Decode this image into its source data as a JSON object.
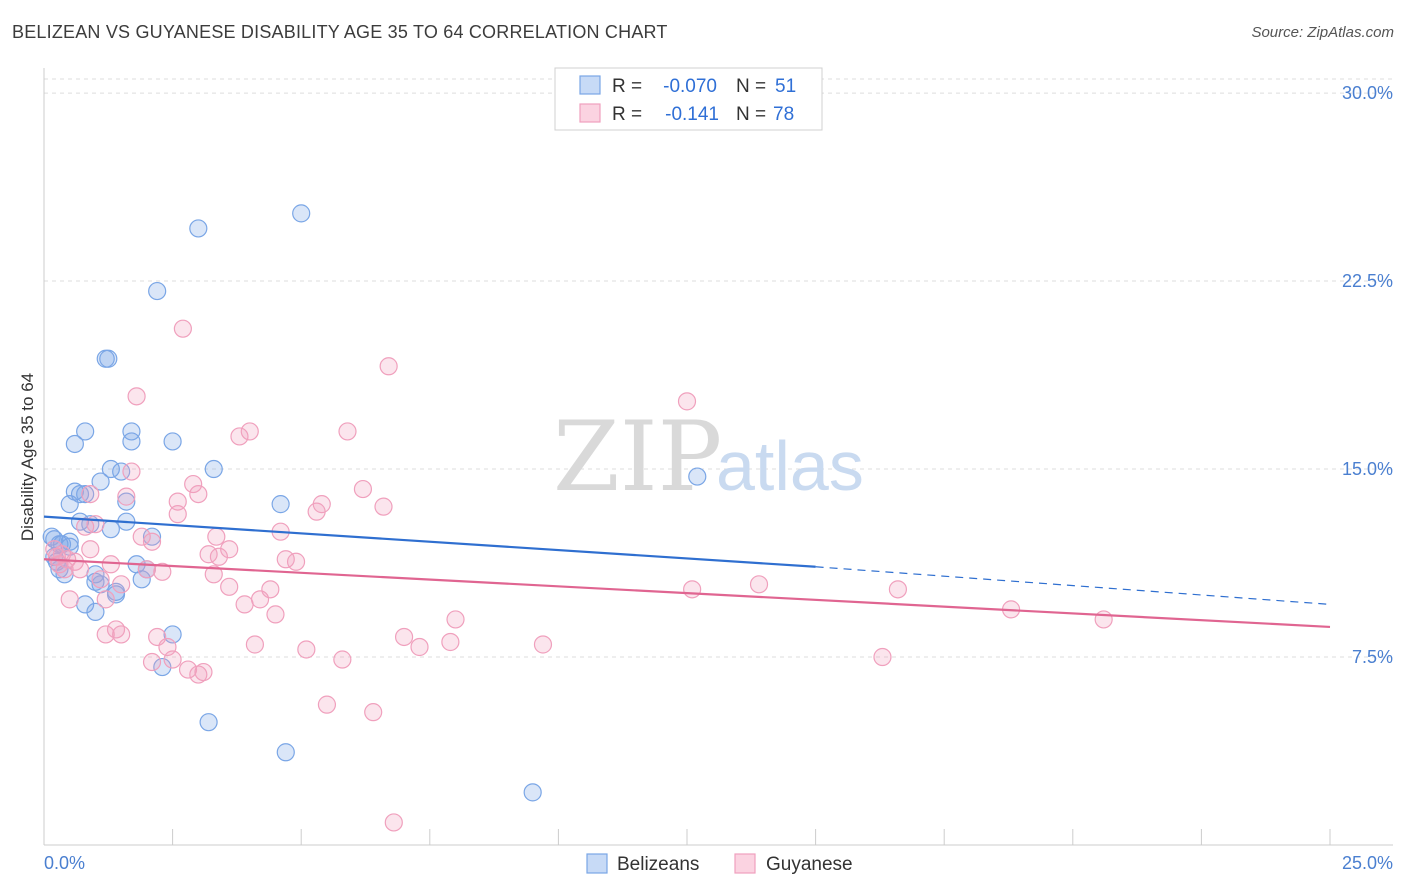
{
  "title": "BELIZEAN VS GUYANESE DISABILITY AGE 35 TO 64 CORRELATION CHART",
  "source": "Source: ZipAtlas.com",
  "watermark": {
    "zip": "ZIP",
    "atlas": "atlas"
  },
  "legend": {
    "r_label": "R =",
    "n_label": "N =",
    "rows": [
      {
        "series": "Belizeans",
        "r": "-0.070",
        "n": "51",
        "color": "#7aa6e6"
      },
      {
        "series": "Guyanese",
        "r": "-0.141",
        "n": "78",
        "color": "#f0a0bd"
      }
    ]
  },
  "chart_data": {
    "type": "scatter",
    "title": "BELIZEAN VS GUYANESE DISABILITY AGE 35 TO 64 CORRELATION CHART",
    "xlabel": "",
    "ylabel": "Disability Age 35 to 64",
    "xlim": [
      0,
      25
    ],
    "ylim": [
      0,
      31
    ],
    "x_tick_labels": [
      "0.0%",
      "25.0%"
    ],
    "y_ticks": [
      7.5,
      15.0,
      22.5,
      30.0
    ],
    "y_tick_labels": [
      "7.5%",
      "15.0%",
      "22.5%",
      "30.0%"
    ],
    "grid": true,
    "series": [
      {
        "name": "Belizeans",
        "color": "#7aa6e6",
        "line_color": "#2f6fd0",
        "trend": {
          "x_start": 0.0,
          "y_start": 13.1,
          "x_solid_end": 15.0,
          "y_solid_end": 11.1,
          "x_dash_end": 25.0,
          "y_dash_end": 9.6
        },
        "points": [
          [
            0.2,
            12.2
          ],
          [
            0.2,
            11.5
          ],
          [
            0.3,
            11.0
          ],
          [
            0.3,
            12.0
          ],
          [
            0.4,
            10.8
          ],
          [
            0.5,
            11.9
          ],
          [
            0.5,
            12.1
          ],
          [
            0.5,
            13.6
          ],
          [
            0.6,
            16.0
          ],
          [
            0.6,
            14.1
          ],
          [
            0.7,
            14.0
          ],
          [
            0.7,
            12.9
          ],
          [
            0.8,
            14.0
          ],
          [
            0.8,
            16.5
          ],
          [
            0.8,
            9.6
          ],
          [
            0.9,
            12.8
          ],
          [
            1.0,
            10.8
          ],
          [
            1.0,
            10.5
          ],
          [
            1.0,
            9.3
          ],
          [
            1.1,
            10.4
          ],
          [
            1.1,
            14.5
          ],
          [
            1.2,
            19.4
          ],
          [
            1.25,
            19.4
          ],
          [
            1.3,
            15.0
          ],
          [
            1.3,
            12.6
          ],
          [
            1.4,
            10.1
          ],
          [
            1.4,
            10.0
          ],
          [
            1.5,
            14.9
          ],
          [
            1.6,
            13.7
          ],
          [
            1.6,
            12.9
          ],
          [
            1.7,
            16.1
          ],
          [
            1.7,
            16.5
          ],
          [
            1.8,
            11.2
          ],
          [
            1.9,
            10.6
          ],
          [
            2.0,
            11.0
          ],
          [
            2.1,
            12.3
          ],
          [
            2.2,
            22.1
          ],
          [
            2.3,
            7.1
          ],
          [
            2.5,
            8.4
          ],
          [
            2.5,
            16.1
          ],
          [
            3.0,
            24.6
          ],
          [
            3.2,
            4.9
          ],
          [
            3.3,
            15.0
          ],
          [
            4.6,
            13.6
          ],
          [
            4.7,
            3.7
          ],
          [
            5.0,
            25.2
          ],
          [
            9.5,
            2.1
          ],
          [
            12.7,
            14.7
          ],
          [
            0.15,
            12.3
          ],
          [
            0.25,
            11.3
          ],
          [
            0.35,
            12.0
          ]
        ]
      },
      {
        "name": "Guyanese",
        "color": "#f0a0bd",
        "line_color": "#e06591",
        "trend": {
          "x_start": 0.0,
          "y_start": 11.4,
          "x_solid_end": 25.0,
          "y_solid_end": 8.7
        },
        "points": [
          [
            0.2,
            11.8
          ],
          [
            0.3,
            11.2
          ],
          [
            0.35,
            11.6
          ],
          [
            0.4,
            11.0
          ],
          [
            0.45,
            11.4
          ],
          [
            0.5,
            9.8
          ],
          [
            0.6,
            11.3
          ],
          [
            0.7,
            11.0
          ],
          [
            0.8,
            12.7
          ],
          [
            0.9,
            14.0
          ],
          [
            0.9,
            11.8
          ],
          [
            1.0,
            12.8
          ],
          [
            1.1,
            10.6
          ],
          [
            1.2,
            9.8
          ],
          [
            1.2,
            8.4
          ],
          [
            1.3,
            11.2
          ],
          [
            1.4,
            8.6
          ],
          [
            1.5,
            8.4
          ],
          [
            1.5,
            10.4
          ],
          [
            1.6,
            13.9
          ],
          [
            1.7,
            14.9
          ],
          [
            1.8,
            17.9
          ],
          [
            1.9,
            12.3
          ],
          [
            2.0,
            11.0
          ],
          [
            2.1,
            12.1
          ],
          [
            2.1,
            7.3
          ],
          [
            2.2,
            8.3
          ],
          [
            2.3,
            10.9
          ],
          [
            2.4,
            7.9
          ],
          [
            2.5,
            7.4
          ],
          [
            2.6,
            13.2
          ],
          [
            2.6,
            13.7
          ],
          [
            2.7,
            20.6
          ],
          [
            2.8,
            7.0
          ],
          [
            2.9,
            14.4
          ],
          [
            3.0,
            14.0
          ],
          [
            3.0,
            6.8
          ],
          [
            3.1,
            6.9
          ],
          [
            3.2,
            11.6
          ],
          [
            3.3,
            10.8
          ],
          [
            3.35,
            12.3
          ],
          [
            3.4,
            11.5
          ],
          [
            3.6,
            11.8
          ],
          [
            3.6,
            10.3
          ],
          [
            3.8,
            16.3
          ],
          [
            3.9,
            9.6
          ],
          [
            4.0,
            16.5
          ],
          [
            4.1,
            8.0
          ],
          [
            4.2,
            9.8
          ],
          [
            4.4,
            10.2
          ],
          [
            4.5,
            9.2
          ],
          [
            4.6,
            12.5
          ],
          [
            4.7,
            11.4
          ],
          [
            4.9,
            11.3
          ],
          [
            5.1,
            7.8
          ],
          [
            5.3,
            13.3
          ],
          [
            5.4,
            13.6
          ],
          [
            5.5,
            5.6
          ],
          [
            5.8,
            7.4
          ],
          [
            5.9,
            16.5
          ],
          [
            6.2,
            14.2
          ],
          [
            6.4,
            5.3
          ],
          [
            6.6,
            13.5
          ],
          [
            6.7,
            19.1
          ],
          [
            6.8,
            0.9
          ],
          [
            7.0,
            8.3
          ],
          [
            7.3,
            7.9
          ],
          [
            7.9,
            8.1
          ],
          [
            8.0,
            9.0
          ],
          [
            9.7,
            8.0
          ],
          [
            12.5,
            17.7
          ],
          [
            12.6,
            10.2
          ],
          [
            13.9,
            10.4
          ],
          [
            16.3,
            7.5
          ],
          [
            16.6,
            10.2
          ],
          [
            18.8,
            9.4
          ],
          [
            20.6,
            9.0
          ],
          [
            0.25,
            11.5
          ]
        ]
      }
    ]
  },
  "bottom_legend": [
    {
      "label": "Belizeans",
      "color": "#7aa6e6"
    },
    {
      "label": "Guyanese",
      "color": "#f0a0bd"
    }
  ]
}
